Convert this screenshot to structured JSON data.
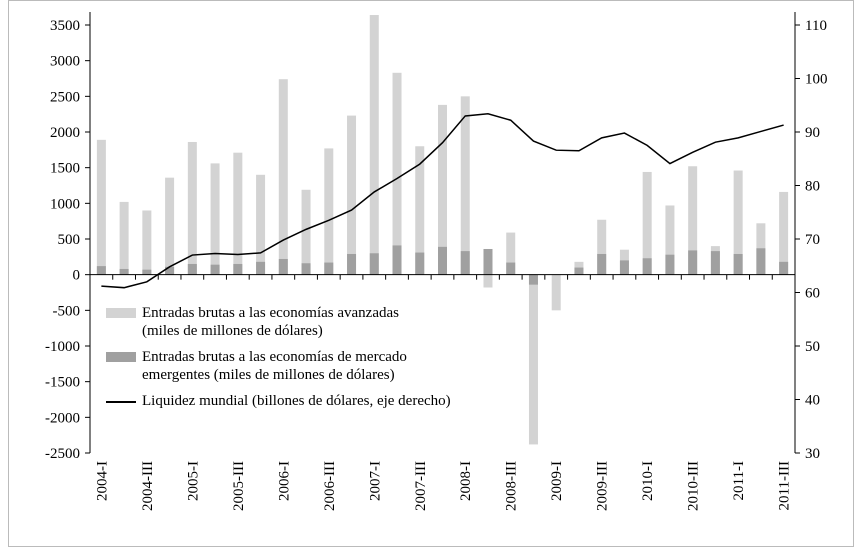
{
  "chart_data": {
    "type": "bar_line",
    "categories": [
      "2004-I",
      null,
      "2004-III",
      null,
      "2005-I",
      null,
      "2005-III",
      null,
      "2006-I",
      null,
      "2006-III",
      null,
      "2007-I",
      null,
      "2007-III",
      null,
      "2008-I",
      null,
      "2008-III",
      null,
      "2009-I",
      null,
      "2009-III",
      null,
      "2010-I",
      null,
      "2010-III",
      null,
      "2011-I",
      null,
      "2011-III"
    ],
    "series": [
      {
        "name": "Entradas brutas a las economías avanzadas (miles de millones de dólares)",
        "type": "bar",
        "color": "#d3d3d3",
        "values": [
          1890,
          1020,
          900,
          1360,
          1860,
          1560,
          1710,
          1400,
          2740,
          1190,
          1770,
          2230,
          3640,
          2830,
          1800,
          2380,
          2500,
          -180,
          590,
          -2380,
          -500,
          180,
          770,
          350,
          1440,
          970,
          1520,
          400,
          1460,
          720,
          1160
        ]
      },
      {
        "name": "Entradas brutas a las economías de mercado emergentes (miles de millones de dólares)",
        "type": "bar",
        "color": "#a0a0a0",
        "values": [
          120,
          80,
          70,
          110,
          150,
          140,
          150,
          180,
          220,
          160,
          170,
          290,
          300,
          410,
          310,
          390,
          330,
          360,
          170,
          -140,
          0,
          100,
          290,
          200,
          230,
          280,
          340,
          330,
          290,
          370,
          180
        ]
      },
      {
        "name": "Liquidez mundial (billones de dólares, eje derecho)",
        "type": "line",
        "axis": "y2",
        "color": "#000000",
        "values": [
          61.2,
          60.9,
          62.0,
          64.8,
          67.0,
          67.3,
          67.1,
          67.4,
          69.8,
          71.8,
          73.5,
          75.4,
          78.8,
          81.3,
          84.0,
          88.0,
          93.0,
          93.4,
          92.2,
          88.3,
          86.6,
          86.5,
          88.9,
          89.8,
          87.5,
          84.1,
          86.2,
          88.1,
          88.9,
          90.1,
          91.3
        ]
      }
    ],
    "ylim": [
      -2500,
      3500
    ],
    "yticks": [
      -2500,
      -2000,
      -1500,
      -1000,
      -500,
      0,
      500,
      1000,
      1500,
      2000,
      2500,
      3000,
      3500
    ],
    "y2lim": [
      30,
      110
    ],
    "y2ticks": [
      30,
      40,
      50,
      60,
      70,
      80,
      90,
      100,
      110
    ]
  }
}
